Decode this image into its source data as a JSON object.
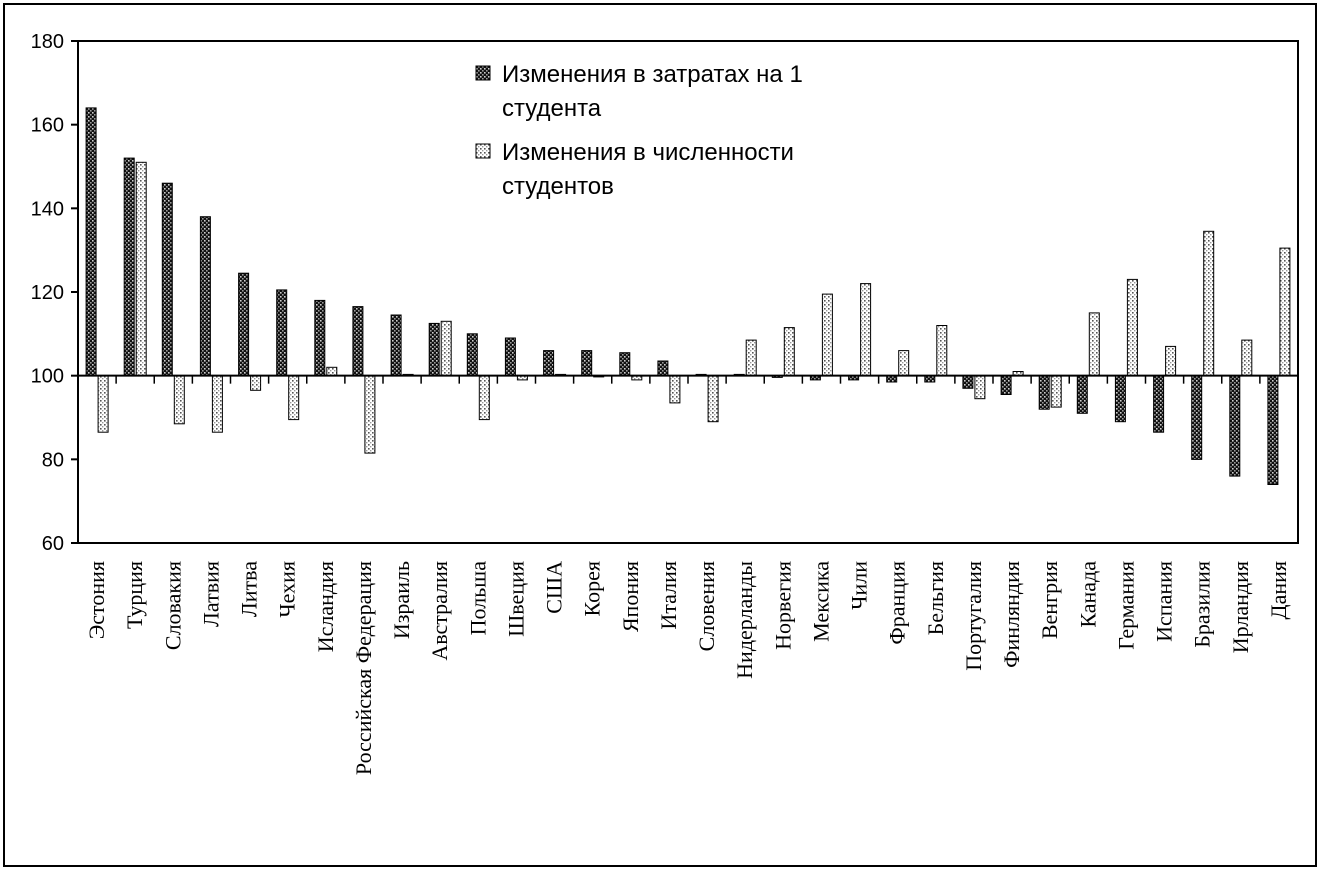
{
  "chart_data": {
    "type": "bar",
    "title": "",
    "xlabel": "",
    "ylabel": "",
    "ylim": [
      60,
      180
    ],
    "yticks": [
      60,
      80,
      100,
      120,
      140,
      160,
      180
    ],
    "baseline": 100,
    "grid": false,
    "legend_position": "top-center",
    "categories": [
      "Эстония",
      "Турция",
      "Словакия",
      "Латвия",
      "Литва",
      "Чехия",
      "Исландия",
      "Российская Федерация",
      "Израиль",
      "Австралия",
      "Польша",
      "Швеция",
      "США",
      "Корея",
      "Япония",
      "Италия",
      "Словения",
      "Нидерланды",
      "Норвегия",
      "Мексика",
      "Чили",
      "Франция",
      "Бельгия",
      "Португалия",
      "Финляндия",
      "Венгрия",
      "Канада",
      "Германия",
      "Испания",
      "Бразилия",
      "Ирландия",
      "Дания"
    ],
    "series": [
      {
        "name": "Изменения в затратах на 1 студента",
        "pattern": "dark",
        "values": [
          164,
          152,
          146,
          138,
          124.5,
          120.5,
          118,
          116.5,
          114.5,
          112.5,
          110,
          109,
          106,
          106,
          105.5,
          103.5,
          100.3,
          100.3,
          99.6,
          99,
          99,
          98.5,
          98.5,
          97,
          95.5,
          92,
          91,
          89,
          86.5,
          80,
          76,
          74
        ]
      },
      {
        "name": "Изменения в численности студентов",
        "pattern": "light",
        "values": [
          86.5,
          151,
          88.5,
          86.5,
          96.5,
          89.5,
          102,
          81.5,
          100.3,
          113,
          89.5,
          99,
          100.3,
          100,
          99,
          93.5,
          89,
          108.5,
          111.5,
          119.5,
          122,
          106,
          112,
          94.5,
          101,
          92.5,
          115,
          123,
          107,
          134.5,
          108.5,
          130.5
        ]
      }
    ],
    "legend": {
      "series1_lines": [
        "Изменения в затратах на 1",
        "студента"
      ],
      "series2_lines": [
        "Изменения в численности",
        "студентов"
      ]
    }
  }
}
